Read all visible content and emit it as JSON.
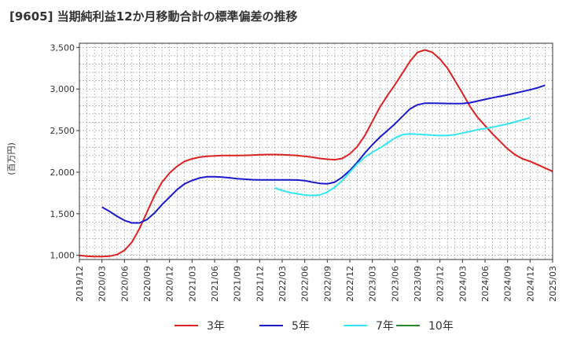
{
  "chart_data": {
    "type": "line",
    "title": "[9605]  当期純利益12か月移動合計の標準偏差の推移",
    "ylabel": "(百万円)",
    "xlabel": "",
    "ylim": [
      950,
      3550
    ],
    "yticks": [
      1000,
      1500,
      2000,
      2500,
      3000,
      3500
    ],
    "ytick_labels": [
      "1,000",
      "1,500",
      "2,000",
      "2,500",
      "3,000",
      "3,500"
    ],
    "x_start": "2019/12",
    "x_end": "2025/03",
    "xtick_labels": [
      "2019/12",
      "2020/03",
      "2020/06",
      "2020/09",
      "2020/12",
      "2021/03",
      "2021/06",
      "2021/09",
      "2021/12",
      "2022/03",
      "2022/06",
      "2022/09",
      "2022/12",
      "2023/03",
      "2023/06",
      "2023/09",
      "2023/12",
      "2024/03",
      "2024/06",
      "2024/09",
      "2024/12",
      "2025/03"
    ],
    "grid": true,
    "legend_position": "bottom",
    "series": [
      {
        "name": "3年",
        "color": "#dd2222",
        "start": "2019/12",
        "values": [
          1000,
          990,
          985,
          985,
          990,
          1010,
          1060,
          1160,
          1320,
          1520,
          1720,
          1880,
          1990,
          2070,
          2130,
          2160,
          2180,
          2190,
          2195,
          2200,
          2200,
          2200,
          2202,
          2205,
          2210,
          2212,
          2212,
          2210,
          2205,
          2200,
          2190,
          2180,
          2165,
          2155,
          2150,
          2165,
          2220,
          2310,
          2440,
          2610,
          2780,
          2920,
          3050,
          3190,
          3330,
          3440,
          3470,
          3440,
          3360,
          3250,
          3100,
          2950,
          2790,
          2660,
          2560,
          2460,
          2370,
          2280,
          2210,
          2160,
          2130,
          2090,
          2050,
          2010
        ]
      },
      {
        "name": "5年",
        "color": "#1a1acc",
        "start": "2020/03",
        "values": [
          1580,
          1530,
          1470,
          1420,
          1390,
          1390,
          1430,
          1510,
          1610,
          1700,
          1790,
          1860,
          1900,
          1930,
          1945,
          1945,
          1940,
          1932,
          1922,
          1915,
          1910,
          1907,
          1907,
          1907,
          1908,
          1908,
          1906,
          1898,
          1880,
          1865,
          1860,
          1880,
          1940,
          2020,
          2120,
          2230,
          2330,
          2420,
          2500,
          2580,
          2670,
          2760,
          2810,
          2830,
          2830,
          2828,
          2826,
          2825,
          2826,
          2835,
          2855,
          2875,
          2895,
          2912,
          2930,
          2950,
          2970,
          2990,
          3015,
          3045
        ]
      },
      {
        "name": "7年",
        "color": "#33e6f2",
        "start": "2022/02",
        "values": [
          1810,
          1780,
          1755,
          1740,
          1725,
          1720,
          1725,
          1760,
          1820,
          1900,
          2000,
          2100,
          2180,
          2240,
          2290,
          2350,
          2410,
          2450,
          2460,
          2455,
          2450,
          2445,
          2440,
          2440,
          2450,
          2470,
          2490,
          2510,
          2525,
          2540,
          2560,
          2580,
          2605,
          2630,
          2655
        ]
      },
      {
        "name": "10年",
        "color": "#2a8a2a",
        "start": "2019/12",
        "values": []
      }
    ]
  }
}
